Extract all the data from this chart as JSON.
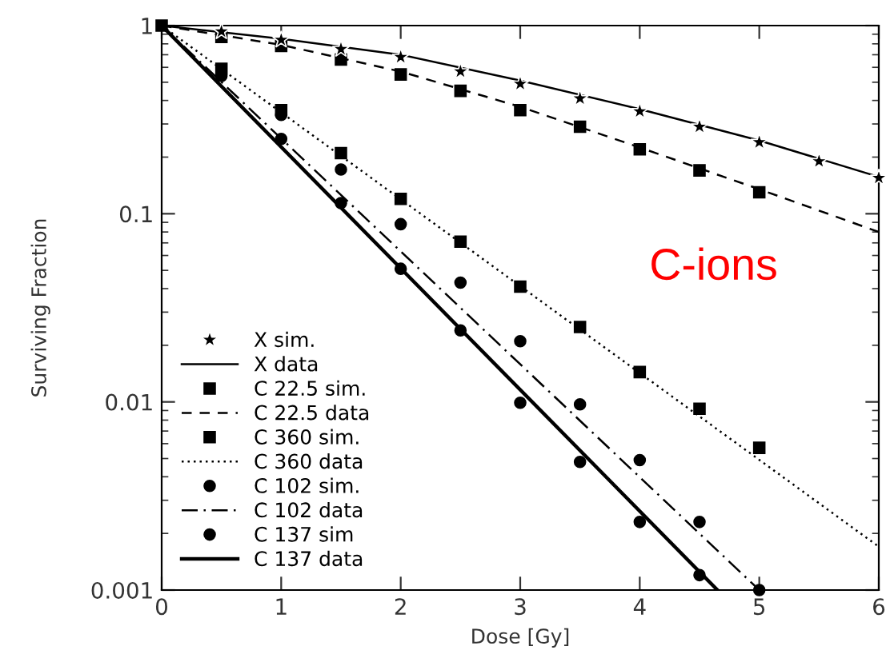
{
  "chart_data": {
    "type": "scatter",
    "xlabel": "Dose [Gy]",
    "ylabel": "Surviving Fraction",
    "annotations": [
      "C-ions"
    ],
    "log": "y",
    "xlim": [
      0,
      6
    ],
    "ylim": [
      0.001,
      1
    ],
    "xticks": [
      0,
      1,
      2,
      3,
      4,
      5,
      6
    ],
    "yticks": [
      0.001,
      0.01,
      0.1,
      1
    ],
    "grid": false,
    "legend": "bottom left",
    "series": [
      {
        "name": "X sim.",
        "marker": "star",
        "color": "#000000",
        "x": [
          0.5,
          1,
          1.5,
          2,
          2.5,
          3,
          3.5,
          4,
          4.5,
          5,
          5.5,
          6
        ],
        "values": [
          0.93,
          0.84,
          0.75,
          0.68,
          0.57,
          0.49,
          0.41,
          0.35,
          0.29,
          0.24,
          0.19,
          0.155
        ]
      },
      {
        "name": "X data",
        "type": "line",
        "line_style": "solid",
        "color": "#000000",
        "x": [
          0,
          1,
          2,
          3,
          4,
          5,
          6
        ],
        "values": [
          1,
          0.85,
          0.7,
          0.51,
          0.36,
          0.245,
          0.157
        ]
      },
      {
        "name": "C 22.5 sim.",
        "marker": "square",
        "color": "#000000",
        "x": [
          0.5,
          1,
          1.5,
          2,
          2.5,
          3,
          3.5,
          4,
          4.5,
          5
        ],
        "values": [
          0.87,
          0.78,
          0.66,
          0.55,
          0.45,
          0.355,
          0.29,
          0.22,
          0.17,
          0.13
        ]
      },
      {
        "name": "C 22.5 data",
        "type": "line",
        "line_style": "dashed",
        "color": "#000000",
        "x": [
          0,
          1,
          2,
          3,
          4,
          5,
          6
        ],
        "values": [
          1,
          0.79,
          0.57,
          0.37,
          0.225,
          0.135,
          0.08
        ]
      },
      {
        "name": "C 360 sim.",
        "marker": "square",
        "color": "#000000",
        "x": [
          0,
          0.5,
          1,
          1.5,
          2,
          2.5,
          3,
          3.5,
          4,
          4.5,
          5
        ],
        "values": [
          1,
          0.59,
          0.355,
          0.21,
          0.12,
          0.071,
          0.041,
          0.025,
          0.0144,
          0.0092,
          0.0057
        ]
      },
      {
        "name": "C 360 data",
        "type": "line",
        "line_style": "dotted",
        "color": "#000000",
        "x": [
          0,
          6
        ],
        "values": [
          1,
          0.0017
        ]
      },
      {
        "name": "C 102 sim.",
        "marker": "circle",
        "color": "#000000",
        "x": [
          1,
          1.5,
          2,
          2.5,
          3,
          3.5,
          4,
          4.5,
          5
        ],
        "values": [
          0.335,
          0.172,
          0.088,
          0.043,
          0.021,
          0.0097,
          0.0049,
          0.0023,
          0.001
        ]
      },
      {
        "name": "C 102 data",
        "type": "line",
        "line_style": "dashdot",
        "color": "#000000",
        "x": [
          0,
          5
        ],
        "values": [
          1,
          0.001
        ]
      },
      {
        "name": "C 137 sim",
        "marker": "circle",
        "color": "#000000",
        "x": [
          0.5,
          1,
          1.5,
          2,
          2.5,
          3,
          3.5,
          4,
          4.5
        ],
        "values": [
          0.54,
          0.25,
          0.114,
          0.051,
          0.024,
          0.0099,
          0.0048,
          0.0023,
          0.0012
        ]
      },
      {
        "name": "C 137 data",
        "type": "line",
        "line_style": "solid",
        "color": "#000000",
        "x": [
          0,
          4.65
        ],
        "values": [
          1,
          0.001
        ]
      }
    ]
  }
}
